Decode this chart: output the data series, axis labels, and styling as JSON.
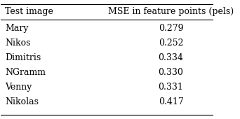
{
  "col1_header": "Test image",
  "col2_header": "MSE in feature points (pels)",
  "rows": [
    [
      "Mary",
      "0.279"
    ],
    [
      "Nikos",
      "0.252"
    ],
    [
      "Dimitris",
      "0.334"
    ],
    [
      "NGramm",
      "0.330"
    ],
    [
      "Venny",
      "0.331"
    ],
    [
      "Nikolas",
      "0.417"
    ]
  ],
  "background_color": "#ffffff",
  "line_color": "#000000",
  "font_size": 9,
  "header_font_size": 9
}
